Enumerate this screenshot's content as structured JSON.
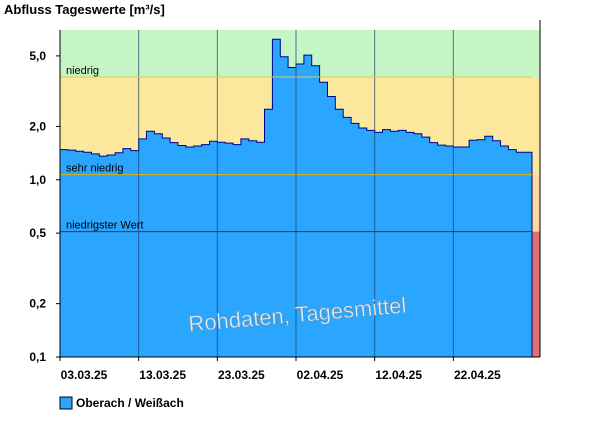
{
  "chart_data": {
    "type": "area",
    "title": "Abfluss Tageswerte [m³/s]",
    "y_scale": "log",
    "ylim": [
      0.1,
      7.0
    ],
    "y_ticks": [
      {
        "value": 0.1,
        "label": "0,1"
      },
      {
        "value": 0.2,
        "label": "0,2"
      },
      {
        "value": 0.5,
        "label": "0,5"
      },
      {
        "value": 1.0,
        "label": "1,0"
      },
      {
        "value": 2.0,
        "label": "2,0"
      },
      {
        "value": 5.0,
        "label": "5,0"
      }
    ],
    "x_tick_labels": [
      "03.03.25",
      "13.03.25",
      "23.03.25",
      "02.04.25",
      "12.04.25",
      "22.04.25"
    ],
    "x_tick_day_index": [
      0,
      10,
      20,
      30,
      40,
      50
    ],
    "day_count": 60,
    "bands": [
      {
        "label": "niedrig",
        "from": 3.8,
        "to": 7.0,
        "color": "#c4f5c4"
      },
      {
        "label": "",
        "from": 1.07,
        "to": 3.8,
        "color": "#fbe89d"
      },
      {
        "label": "",
        "from": 0.51,
        "to": 1.07,
        "color": "#ffffff"
      },
      {
        "label": "",
        "from": 0.1,
        "to": 0.51,
        "color": "#ffffff"
      }
    ],
    "threshold_lines": [
      {
        "label": "niedrig",
        "value": 3.8,
        "color": "#e0c860"
      },
      {
        "label": "sehr niedrig",
        "value": 1.07,
        "color": "#e8b000"
      },
      {
        "label": "niedrigster Wert",
        "value": 0.51,
        "color": "#c00000"
      }
    ],
    "right_strip": [
      {
        "from": 3.8,
        "to": 7.0,
        "color": "#c4f5c4"
      },
      {
        "from": 1.07,
        "to": 3.8,
        "color": "#fbe89d"
      },
      {
        "from": 0.51,
        "to": 1.07,
        "color": "#ffd8a0"
      },
      {
        "from": 0.1,
        "to": 0.51,
        "color": "#e07070"
      }
    ],
    "series": [
      {
        "name": "Oberach / Weißach",
        "color": "#2aa6ff",
        "values": [
          1.48,
          1.47,
          1.45,
          1.43,
          1.4,
          1.36,
          1.38,
          1.42,
          1.5,
          1.46,
          1.7,
          1.88,
          1.82,
          1.72,
          1.62,
          1.56,
          1.53,
          1.55,
          1.58,
          1.65,
          1.63,
          1.61,
          1.58,
          1.7,
          1.66,
          1.63,
          2.5,
          6.2,
          4.95,
          4.3,
          4.5,
          5.05,
          4.4,
          3.55,
          2.95,
          2.5,
          2.25,
          2.08,
          1.96,
          1.9,
          1.85,
          1.92,
          1.88,
          1.9,
          1.85,
          1.82,
          1.74,
          1.62,
          1.57,
          1.55,
          1.53,
          1.53,
          1.67,
          1.68,
          1.76,
          1.66,
          1.55,
          1.48,
          1.43,
          1.43
        ]
      }
    ],
    "annotation": "Rohdaten, Tagesmittel",
    "legend": {
      "position": "bottom-left"
    }
  }
}
